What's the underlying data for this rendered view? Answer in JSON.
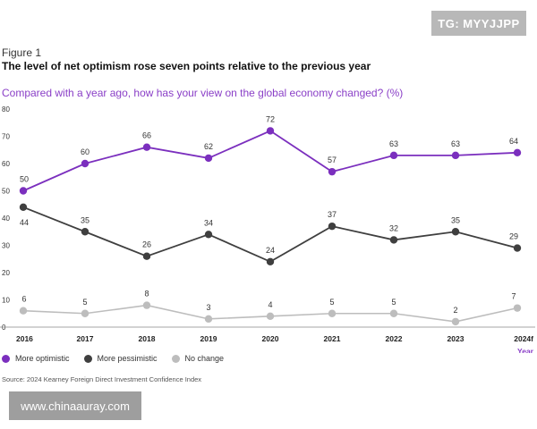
{
  "watermarks": {
    "top_right": "TG: MYYJJPP",
    "bottom_left": "www.chinaauray.com"
  },
  "figure": {
    "label": "Figure 1",
    "title": "The level of net optimism rose seven points relative to the previous year"
  },
  "source": "Source: 2024 Kearney Foreign Direct Investment Confidence Index",
  "chart_data": {
    "type": "line",
    "title": "Compared with a year ago, how has your view on the global economy changed? (%)",
    "xlabel": "Year",
    "ylabel": "",
    "categories": [
      "2016",
      "2017",
      "2018",
      "2019",
      "2020",
      "2021",
      "2022",
      "2023",
      "2024f"
    ],
    "ylim": [
      0,
      80
    ],
    "yticks": [
      0,
      10,
      20,
      30,
      40,
      50,
      60,
      70,
      80
    ],
    "legend_position": "bottom-left",
    "series": [
      {
        "name": "More optimistic",
        "color": "#7b2fbe",
        "values": [
          50,
          60,
          66,
          62,
          72,
          57,
          63,
          63,
          64
        ],
        "labels": [
          "50",
          "60",
          "66",
          "62",
          "72",
          "57",
          "63",
          "63",
          "64"
        ]
      },
      {
        "name": "More pessimistic",
        "color": "#3f3f3f",
        "values": [
          44,
          35,
          26,
          34,
          24,
          37,
          32,
          35,
          29
        ],
        "labels": [
          "44",
          "35",
          "26",
          "34",
          "24",
          "37",
          "32",
          "35",
          "29"
        ]
      },
      {
        "name": "No change",
        "color": "#bdbdbd",
        "values": [
          6,
          5,
          8,
          3,
          4,
          5,
          5,
          2,
          7
        ],
        "labels": [
          "6",
          "5",
          "8",
          "3",
          "4",
          "5",
          "5",
          "2",
          "7"
        ]
      }
    ]
  }
}
